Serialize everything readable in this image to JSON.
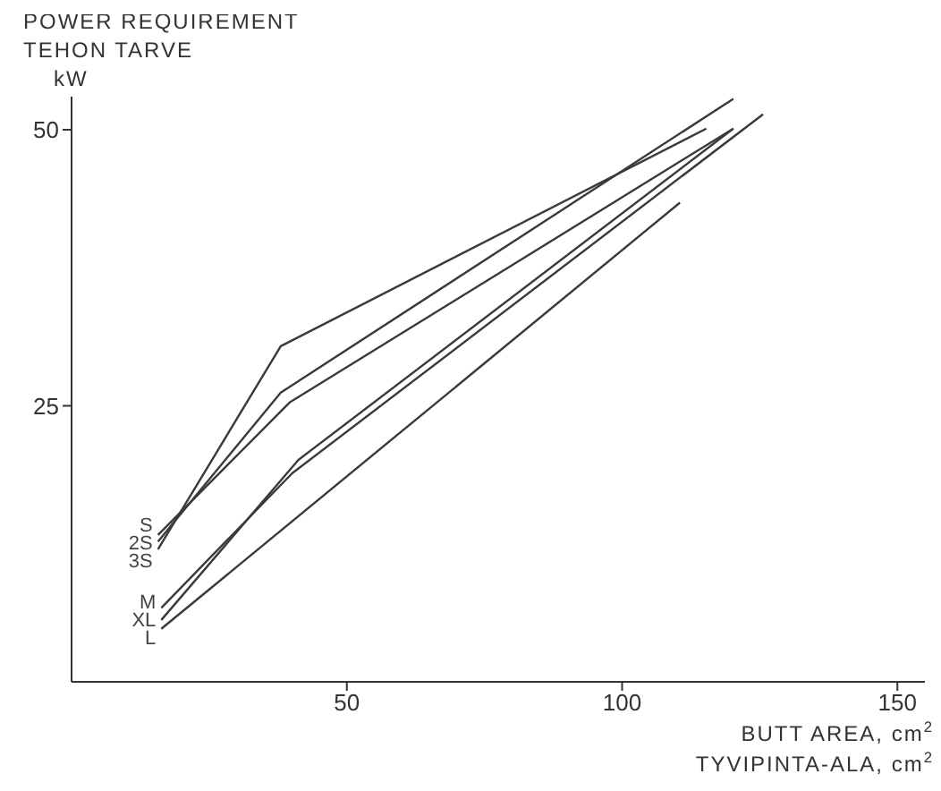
{
  "chart_data": {
    "type": "line",
    "ylabel": "POWER REQUIREMENT\nTEHON TARVE\nkW",
    "xlabel": "BUTT AREA, cm$^{2}$\nTYVIPINTA-ALA, cm$^{2}$",
    "xlim": [
      0,
      155
    ],
    "xticks": [
      50,
      100,
      150
    ],
    "ylim": [
      0,
      53
    ],
    "yticks": [
      25,
      50
    ],
    "marker": "none",
    "line_style": "solid",
    "series": [
      {
        "name": "S",
        "color": "#3a3a3a",
        "x": [
          15.7,
          39.6,
          120.2
        ],
        "values": [
          13.3,
          25.3,
          50.1
        ]
      },
      {
        "name": "2S",
        "color": "#3a3a3a",
        "x": [
          15.7,
          38,
          120.2
        ],
        "values": [
          12.7,
          26.2,
          52.8
        ]
      },
      {
        "name": "3S",
        "color": "#3a3a3a",
        "x": [
          15.7,
          38,
          115.3
        ],
        "values": [
          12.0,
          30.4,
          50.1
        ]
      },
      {
        "name": "M",
        "color": "#3a3a3a",
        "x": [
          16.3,
          40.1,
          125.6
        ],
        "values": [
          6.7,
          18.9,
          51.4
        ]
      },
      {
        "name": "XL",
        "color": "#3a3a3a",
        "x": [
          16.3,
          41.2,
          120.2
        ],
        "values": [
          5.6,
          20.1,
          50.1
        ]
      },
      {
        "name": "L",
        "color": "#3a3a3a",
        "x": [
          16.3,
          110.5
        ],
        "values": [
          4.8,
          43.4
        ]
      }
    ]
  }
}
